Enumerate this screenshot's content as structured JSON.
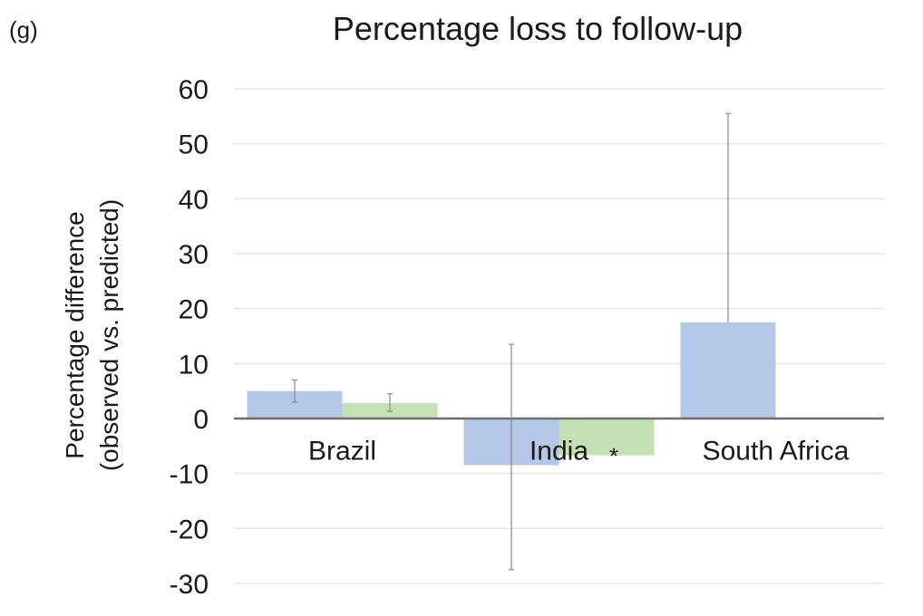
{
  "panel_label": "(g)",
  "chart_data": {
    "type": "bar",
    "title": "Percentage loss to follow-up",
    "ylabel_line1": "Percentage difference",
    "ylabel_line2": "(observed vs. predicted)",
    "xlabel": "",
    "categories": [
      "Brazil",
      "India",
      "South Africa"
    ],
    "ylim": [
      -30,
      60
    ],
    "yticks": [
      60,
      50,
      40,
      30,
      20,
      10,
      0,
      -10,
      -20,
      -30
    ],
    "grid": true,
    "legend": "none",
    "series": [
      {
        "color": "#b4c7e7",
        "values": [
          5,
          -8.5,
          17.5
        ],
        "error_low": [
          3,
          -27.5,
          null
        ],
        "error_high": [
          7,
          13.5,
          55.5
        ]
      },
      {
        "color": "#c5e0b4",
        "values": [
          2.8,
          -6.7,
          null
        ],
        "error_low": [
          1.3,
          null,
          null
        ],
        "error_high": [
          4.5,
          null,
          null
        ]
      }
    ],
    "annotations": [
      {
        "text": "*",
        "category": "India",
        "series": 1,
        "y": -6
      }
    ]
  }
}
